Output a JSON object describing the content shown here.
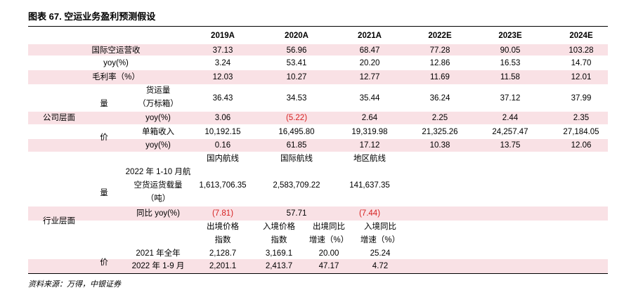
{
  "title": "图表 67. 空运业务盈利预测假设",
  "headers": [
    "2019A",
    "2020A",
    "2021A",
    "2022E",
    "2023E",
    "2024E"
  ],
  "rows": {
    "revenue": {
      "label": "国际空运营收",
      "values": [
        "37.13",
        "56.96",
        "68.47",
        "77.28",
        "90.05",
        "103.28"
      ]
    },
    "revenue_yoy": {
      "label": "yoy(%)",
      "values": [
        "3.24",
        "53.41",
        "20.20",
        "12.86",
        "16.53",
        "14.70"
      ]
    },
    "margin": {
      "label": "毛利率（%）",
      "values": [
        "12.03",
        "10.27",
        "12.77",
        "11.69",
        "11.58",
        "12.01"
      ]
    },
    "volume": {
      "label_line1": "货运量",
      "label_line2": "（万标箱）",
      "values": [
        "36.43",
        "34.53",
        "35.44",
        "36.24",
        "37.12",
        "37.99"
      ]
    },
    "volume_yoy": {
      "label": "yoy(%)",
      "values": [
        "3.06",
        "(5.22)",
        "2.64",
        "2.25",
        "2.44",
        "2.35"
      ]
    },
    "unit_revenue": {
      "label": "单箱收入",
      "values": [
        "10,192.15",
        "16,495.80",
        "19,319.98",
        "21,325.26",
        "24,257.47",
        "27,184.05"
      ]
    },
    "unit_yoy": {
      "label": "yoy(%)",
      "values": [
        "0.16",
        "61.85",
        "17.12",
        "10.38",
        "13.75",
        "12.06"
      ]
    }
  },
  "group_labels": {
    "company": "公司层面",
    "industry": "行业层面",
    "volume": "量",
    "price": "价"
  },
  "industry": {
    "air_headers": [
      "国内航线",
      "国际航线",
      "地区航线"
    ],
    "air_label_lines": [
      "2022 年 1-10 月航",
      "空货运货载量",
      "（吨）"
    ],
    "air_values": [
      "1,613,706.35",
      "2,583,709.22",
      "141,637.35"
    ],
    "air_yoy_label": "同比 yoy(%)",
    "air_yoy_values": [
      "(7.81)",
      "57.71",
      "(7.44)"
    ],
    "price_headers": [
      {
        "line1": "出境价格",
        "line2": "指数"
      },
      {
        "line1": "入境价格",
        "line2": "指数"
      },
      {
        "line1": "出境同比",
        "line2": "增速（%）"
      },
      {
        "line1": "入境同比",
        "line2": "增速（%）"
      }
    ],
    "price_rows": [
      {
        "label": "2021 年全年",
        "values": [
          "2,128.7",
          "3,169.1",
          "20.00",
          "25.24"
        ]
      },
      {
        "label": "2022 年 1-9 月",
        "values": [
          "2,201.1",
          "2,413.7",
          "47.17",
          "4.72"
        ]
      }
    ]
  },
  "source": "资料来源：万得，中银证券",
  "colors": {
    "band": "#f9e1e5",
    "negative": "#d61f1f",
    "text": "#000000"
  }
}
